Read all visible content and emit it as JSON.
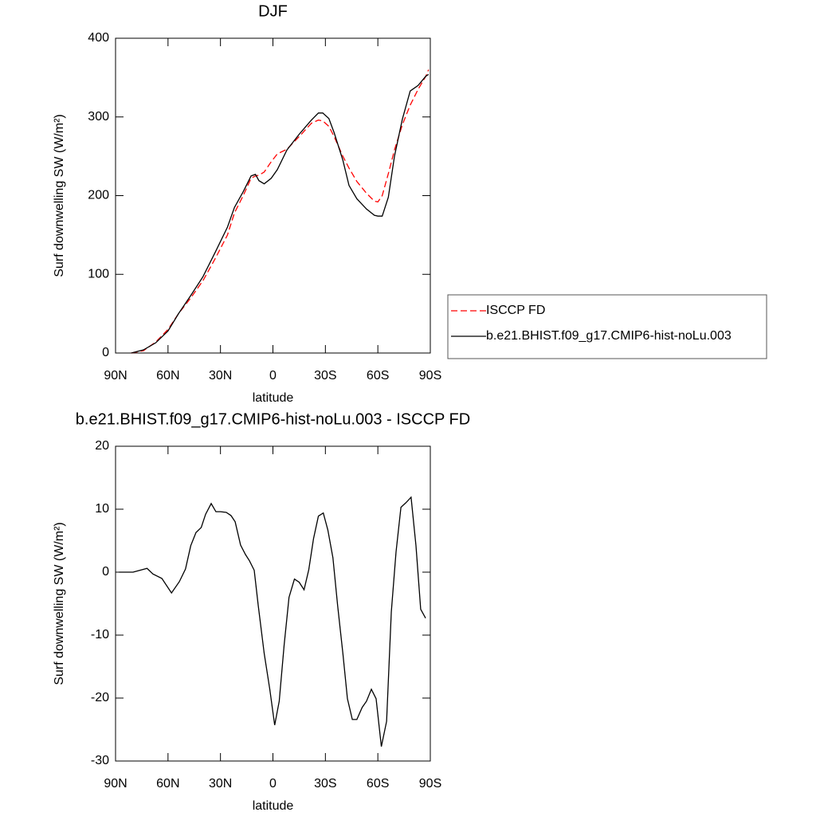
{
  "chart_data": [
    {
      "type": "line",
      "title": "DJF",
      "xlabel": "latitude",
      "ylabel": "Surf downwelling SW (W/m²)",
      "x": [
        81,
        74,
        67,
        60,
        54,
        47,
        40,
        33,
        26,
        22,
        17,
        12.5,
        10,
        8,
        5,
        1,
        -2.5,
        -8,
        -15,
        -22,
        -26,
        -28.5,
        -32,
        -35,
        -40,
        -43.5,
        -48,
        -53.5,
        -58,
        -60,
        -62.5,
        -66,
        -69.5,
        -74,
        -78.5,
        -83,
        -87.5,
        -89
      ],
      "series": [
        {
          "name": "ISCCP FD",
          "color": "#ff0000",
          "line_style": "dashed",
          "values": [
            0,
            3,
            14,
            30,
            50,
            70,
            92,
            120,
            150,
            178,
            200,
            222,
            225,
            226,
            230,
            243,
            253,
            259,
            275,
            292,
            296,
            295,
            288,
            275,
            250,
            235,
            218,
            203,
            193,
            192,
            200,
            228,
            258,
            290,
            315,
            335,
            352,
            360
          ]
        },
        {
          "name": "b.e21.BHIST.f09_g17.CMIP6-hist-noLu.003",
          "color": "#000000",
          "line_style": "solid",
          "values": [
            0,
            4,
            13,
            28,
            50,
            73,
            97,
            128,
            160,
            185,
            205,
            225,
            227,
            219,
            215,
            222,
            233,
            258,
            278,
            296,
            305,
            305,
            298,
            280,
            245,
            213,
            196,
            183,
            175,
            174,
            174,
            198,
            250,
            297,
            333,
            340,
            352,
            354
          ]
        }
      ],
      "xlim": [
        90,
        -90
      ],
      "xticks": [
        {
          "value": 90,
          "label": "90N"
        },
        {
          "value": 60,
          "label": "60N"
        },
        {
          "value": 30,
          "label": "30N"
        },
        0,
        {
          "value": -30,
          "label": "30S"
        },
        {
          "value": -60,
          "label": "60S"
        },
        {
          "value": -90,
          "label": "90S"
        }
      ],
      "ylim": [
        0,
        400
      ],
      "yticks": [
        0,
        100,
        200,
        300,
        400
      ],
      "legend": "right"
    },
    {
      "type": "line",
      "title": "b.e21.BHIST.f09_g17.CMIP6-hist-noLu.003 - ISCCP FD",
      "xlabel": "latitude",
      "ylabel": "Surf downwelling SW (W/m²)",
      "x": [
        88,
        80,
        72,
        68.6,
        63.5,
        58,
        53.5,
        50,
        47,
        44,
        41,
        38.5,
        35.3,
        32.6,
        30,
        26.7,
        24,
        21.6,
        18.5,
        15.7,
        13.4,
        10.7,
        8.4,
        5,
        1.8,
        -1,
        -3.6,
        -6.4,
        -9.2,
        -12.3,
        -15,
        -17.8,
        -20.5,
        -23.2,
        -26,
        -28.8,
        -31.4,
        -34.3,
        -37,
        -40,
        -42.6,
        -45.4,
        -48,
        -51,
        -53.5,
        -56.3,
        -59,
        -62,
        -65,
        -67.7,
        -70.4,
        -73.2,
        -76.3,
        -79,
        -81.8,
        -84.5,
        -87.3
      ],
      "values": [
        0,
        0,
        0.6,
        -0.3,
        -1,
        -3.3,
        -1.5,
        0.5,
        4.2,
        6.3,
        7.1,
        9.2,
        10.9,
        9.6,
        9.6,
        9.5,
        9,
        8,
        4.3,
        2.8,
        1.8,
        0.3,
        -5.3,
        -12.9,
        -18.6,
        -24.3,
        -20.5,
        -11.6,
        -4,
        -1.1,
        -1.6,
        -2.8,
        0.4,
        5.3,
        8.9,
        9.4,
        6.7,
        2.3,
        -5.3,
        -12.9,
        -20.1,
        -23.4,
        -23.4,
        -21.5,
        -20.5,
        -18.6,
        -20.1,
        -27.7,
        -23.7,
        -6.3,
        3.2,
        10.3,
        11.1,
        11.9,
        4.2,
        -5.9,
        -7.3
      ],
      "color": "#000000",
      "xlim": [
        90,
        -90
      ],
      "xticks": [
        {
          "value": 90,
          "label": "90N"
        },
        {
          "value": 60,
          "label": "60N"
        },
        {
          "value": 30,
          "label": "30N"
        },
        0,
        {
          "value": -30,
          "label": "30S"
        },
        {
          "value": -60,
          "label": "60S"
        },
        {
          "value": -90,
          "label": "90S"
        }
      ],
      "ylim": [
        -30,
        20
      ],
      "yticks": [
        -30,
        -20,
        -10,
        0,
        10,
        20
      ]
    }
  ]
}
